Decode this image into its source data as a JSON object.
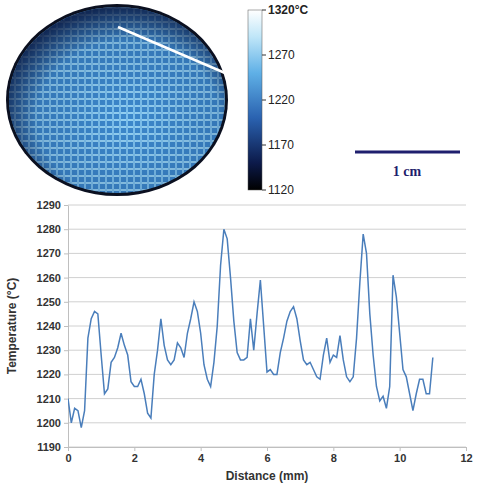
{
  "thermal_image": {
    "colorbar_range": [
      1120,
      1320
    ],
    "colorbar_ticks": [
      {
        "value": 1320,
        "label": "1320°C"
      },
      1270,
      1220,
      1170,
      1120
    ],
    "scale_bar_label": "1 cm"
  },
  "chart_data": {
    "type": "line",
    "x_label": "Distance (mm)",
    "y_label": "Temperature (°C)",
    "x": [
      0,
      0.1,
      0.2,
      0.3,
      0.4,
      0.5,
      0.6,
      0.7,
      0.8,
      0.9,
      1.0,
      1.1,
      1.2,
      1.3,
      1.4,
      1.5,
      1.6,
      1.7,
      1.8,
      1.9,
      2.0,
      2.1,
      2.2,
      2.3,
      2.4,
      2.5,
      2.6,
      2.7,
      2.8,
      2.9,
      3.0,
      3.1,
      3.2,
      3.3,
      3.4,
      3.5,
      3.6,
      3.7,
      3.8,
      3.9,
      4.0,
      4.1,
      4.2,
      4.3,
      4.4,
      4.5,
      4.6,
      4.7,
      4.8,
      4.9,
      5.0,
      5.1,
      5.2,
      5.3,
      5.4,
      5.5,
      5.6,
      5.7,
      5.8,
      5.9,
      6.0,
      6.1,
      6.2,
      6.3,
      6.4,
      6.5,
      6.6,
      6.7,
      6.8,
      6.9,
      7.0,
      7.1,
      7.2,
      7.3,
      7.4,
      7.5,
      7.6,
      7.7,
      7.8,
      7.9,
      8.0,
      8.1,
      8.2,
      8.3,
      8.4,
      8.5,
      8.6,
      8.7,
      8.8,
      8.9,
      9.0,
      9.1,
      9.2,
      9.3,
      9.4,
      9.5,
      9.6,
      9.7,
      9.8,
      9.9,
      10.0,
      10.1,
      10.2,
      10.3,
      10.4,
      10.5,
      10.6,
      10.7,
      10.8,
      10.9,
      11.0
    ],
    "values": [
      1210,
      1200,
      1206,
      1205,
      1198,
      1205,
      1235,
      1243,
      1246,
      1245,
      1228,
      1212,
      1214,
      1225,
      1227,
      1231,
      1237,
      1232,
      1228,
      1217,
      1215,
      1215,
      1218,
      1212,
      1204,
      1202,
      1220,
      1230,
      1243,
      1232,
      1226,
      1224,
      1226,
      1233,
      1231,
      1227,
      1237,
      1243,
      1250,
      1246,
      1237,
      1224,
      1218,
      1215,
      1225,
      1240,
      1265,
      1280,
      1276,
      1260,
      1242,
      1229,
      1226,
      1226,
      1227,
      1243,
      1230,
      1245,
      1259,
      1240,
      1221,
      1222,
      1220,
      1220,
      1229,
      1235,
      1242,
      1246,
      1248,
      1243,
      1234,
      1226,
      1224,
      1225,
      1222,
      1219,
      1218,
      1228,
      1235,
      1225,
      1228,
      1227,
      1236,
      1226,
      1219,
      1217,
      1219,
      1235,
      1258,
      1278,
      1270,
      1245,
      1228,
      1215,
      1209,
      1211,
      1206,
      1215,
      1261,
      1252,
      1237,
      1222,
      1219,
      1212,
      1205,
      1212,
      1218,
      1218,
      1212,
      1212,
      1227
    ],
    "color": "#4a7ebb",
    "xlim": [
      0,
      12
    ],
    "xticks": [
      0,
      2,
      4,
      6,
      8,
      10,
      12
    ],
    "ylim": [
      1190,
      1290
    ],
    "yticks": [
      1190,
      1200,
      1210,
      1220,
      1230,
      1240,
      1250,
      1260,
      1270,
      1280,
      1290
    ],
    "grid": true
  }
}
